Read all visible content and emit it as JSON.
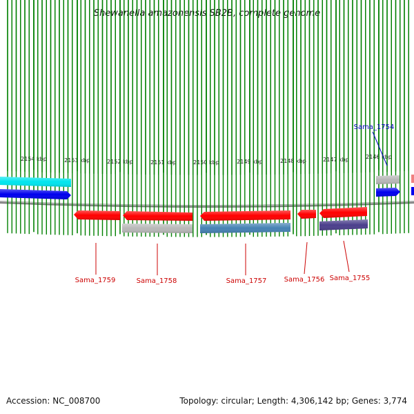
{
  "title": "Shewanella amazonensis SB2B, complete genome",
  "kbp_ticks": [
    "2154 kbp",
    "2153 kbp",
    "2152 kbp",
    "2151 kbp",
    "2150 kbp",
    "2149 kbp",
    "2148 kbp",
    "2147 kbp",
    "2146 kbp"
  ],
  "genes": [
    {
      "name": "Sama_1754",
      "color": "#0000bb"
    },
    {
      "name": "Sama_1755",
      "color": "#cc0000"
    },
    {
      "name": "Sama_1756",
      "color": "#cc0000"
    },
    {
      "name": "Sama_1757",
      "color": "#cc0000"
    },
    {
      "name": "Sama_1758",
      "color": "#cc0000"
    },
    {
      "name": "Sama_1759",
      "color": "#cc0000"
    }
  ],
  "colors": {
    "red": "#ff0000",
    "blue": "#0000ee",
    "cyan": "#00e5ee",
    "gray": "#b8b8b8",
    "steel": "#4682b4",
    "purple": "#4b3f8c",
    "pink": "#f08080",
    "tick_green": "#008000",
    "backbone": "#808080"
  },
  "footer": {
    "accession": "Accession: NC_008700",
    "topology": "Topology: circular; Length: 4,306,142 bp; Genes: 3,774"
  }
}
